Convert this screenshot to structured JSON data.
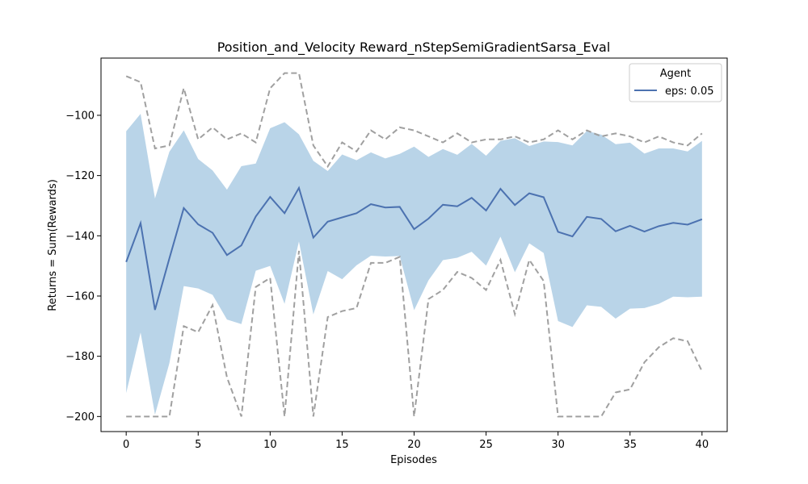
{
  "chart_data": {
    "type": "line",
    "title": "Position_and_Velocity Reward_nStepSemiGradientSarsa_Eval",
    "xlabel": "Episodes",
    "ylabel": "Returns = Sum(Rewards)",
    "xlim": [
      -1.75,
      41.75
    ],
    "ylim": [
      -205,
      -81
    ],
    "xticks": [
      0,
      5,
      10,
      15,
      20,
      25,
      30,
      35,
      40
    ],
    "yticks": [
      -200,
      -180,
      -160,
      -140,
      -120,
      -100
    ],
    "legend": {
      "title": "Agent",
      "position": "top-right",
      "entries": [
        "eps: 0.05"
      ]
    },
    "colors": {
      "mean": "#4c72b0",
      "band": "#b9d4e8",
      "minmax": "#a0a0a0"
    },
    "x": [
      0,
      1,
      2,
      3,
      4,
      5,
      6,
      7,
      8,
      9,
      10,
      11,
      12,
      13,
      14,
      15,
      16,
      17,
      18,
      19,
      20,
      21,
      22,
      23,
      24,
      25,
      26,
      27,
      28,
      29,
      30,
      31,
      32,
      33,
      34,
      35,
      36,
      37,
      38,
      39,
      40
    ],
    "series": [
      {
        "name": "eps: 0.05",
        "role": "mean",
        "values": [
          -148.7,
          -135.8,
          -164.6,
          -147.5,
          -130.8,
          -136.2,
          -139.0,
          -146.4,
          -143.2,
          -133.6,
          -127.1,
          -132.5,
          -124.1,
          -140.6,
          -135.3,
          -133.9,
          -132.5,
          -129.5,
          -130.6,
          -130.4,
          -137.8,
          -134.3,
          -129.7,
          -130.2,
          -127.4,
          -131.6,
          -124.4,
          -129.8,
          -125.9,
          -127.2,
          -138.7,
          -140.2,
          -133.7,
          -134.4,
          -138.5,
          -136.7,
          -138.6,
          -136.8,
          -135.7,
          -136.3,
          -134.5
        ]
      },
      {
        "role": "band-upper",
        "values": [
          -105.3,
          -99.5,
          -127.6,
          -112.1,
          -105.0,
          -114.5,
          -118.3,
          -124.7,
          -116.9,
          -116.0,
          -104.3,
          -102.3,
          -106.3,
          -115.1,
          -118.5,
          -113.0,
          -114.9,
          -112.3,
          -114.3,
          -112.8,
          -110.4,
          -113.8,
          -111.2,
          -113.1,
          -109.5,
          -113.4,
          -108.5,
          -107.6,
          -110.2,
          -108.7,
          -108.9,
          -110.0,
          -105.2,
          -106.4,
          -109.6,
          -109.1,
          -112.7,
          -111.0,
          -111.0,
          -112.0,
          -108.5
        ]
      },
      {
        "role": "band-lower",
        "values": [
          -192.2,
          -172.1,
          -199.4,
          -182.3,
          -156.7,
          -157.5,
          -159.6,
          -167.8,
          -169.3,
          -151.6,
          -150.0,
          -162.6,
          -141.9,
          -166.1,
          -151.7,
          -154.4,
          -149.8,
          -146.6,
          -146.9,
          -146.7,
          -164.7,
          -154.8,
          -148.1,
          -147.3,
          -145.3,
          -149.9,
          -140.3,
          -152.1,
          -142.5,
          -145.7,
          -168.3,
          -170.3,
          -163.1,
          -163.6,
          -167.5,
          -164.2,
          -164.0,
          -162.6,
          -160.2,
          -160.4,
          -160.2
        ]
      },
      {
        "role": "max",
        "values": [
          -87,
          -89,
          -111,
          -110,
          -91,
          -108,
          -104,
          -108,
          -106,
          -109,
          -91,
          -86,
          -86,
          -110,
          -117,
          -109,
          -112,
          -105,
          -108,
          -104,
          -105,
          -107,
          -109,
          -106,
          -109,
          -108,
          -108,
          -107,
          -109,
          -108,
          -105,
          -108,
          -105,
          -107,
          -106,
          -107,
          -109,
          -107,
          -109,
          -110,
          -106
        ]
      },
      {
        "role": "min",
        "values": [
          -200,
          -200,
          -200,
          -200,
          -170,
          -172,
          -163,
          -187,
          -200,
          -157,
          -154,
          -200,
          -145,
          -200,
          -167,
          -165,
          -164,
          -149,
          -149,
          -147,
          -200,
          -161,
          -158,
          -152,
          -154,
          -158,
          -148,
          -166,
          -148,
          -155,
          -200,
          -200,
          -200,
          -200,
          -192,
          -191,
          -182,
          -177,
          -174,
          -175,
          -185
        ]
      }
    ]
  }
}
